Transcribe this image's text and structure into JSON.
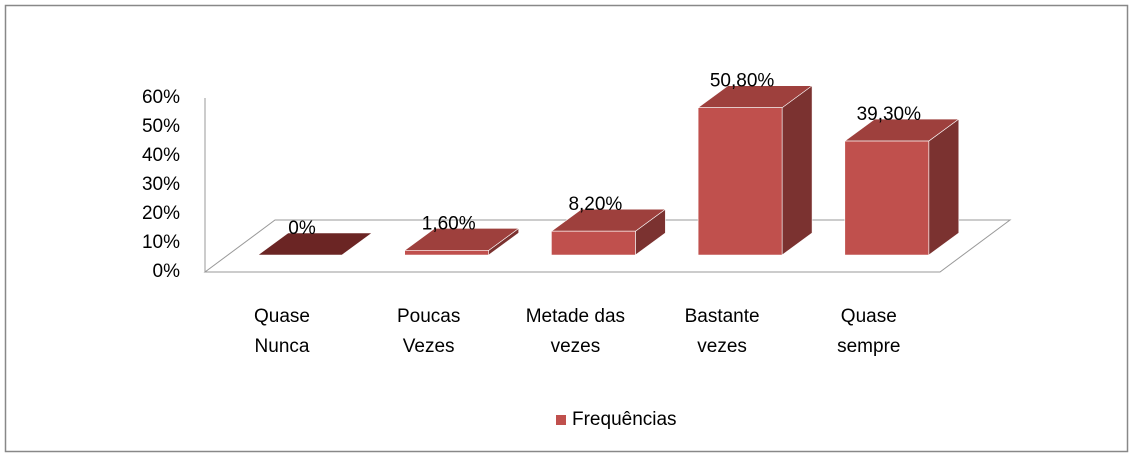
{
  "chart_data": {
    "type": "bar3d",
    "categories": [
      "Quase Nunca",
      "Poucas Vezes",
      "Metade das vezes",
      "Bastante vezes",
      "Quase sempre"
    ],
    "series": [
      {
        "name": "Frequências",
        "color": "#c0504d",
        "values": [
          0,
          1.6,
          8.2,
          50.8,
          39.3
        ],
        "value_labels": [
          "0%",
          "1,60%",
          "8,20%",
          "50,80%",
          "39,30%"
        ]
      }
    ],
    "ylim": [
      0,
      60
    ],
    "yticks": [
      {
        "value": 0,
        "label": "0%"
      },
      {
        "value": 10,
        "label": "10%"
      },
      {
        "value": 20,
        "label": "20%"
      },
      {
        "value": 30,
        "label": "30%"
      },
      {
        "value": 40,
        "label": "40%"
      },
      {
        "value": 50,
        "label": "50%"
      },
      {
        "value": 60,
        "label": "60%"
      }
    ],
    "legend": "bottom"
  }
}
